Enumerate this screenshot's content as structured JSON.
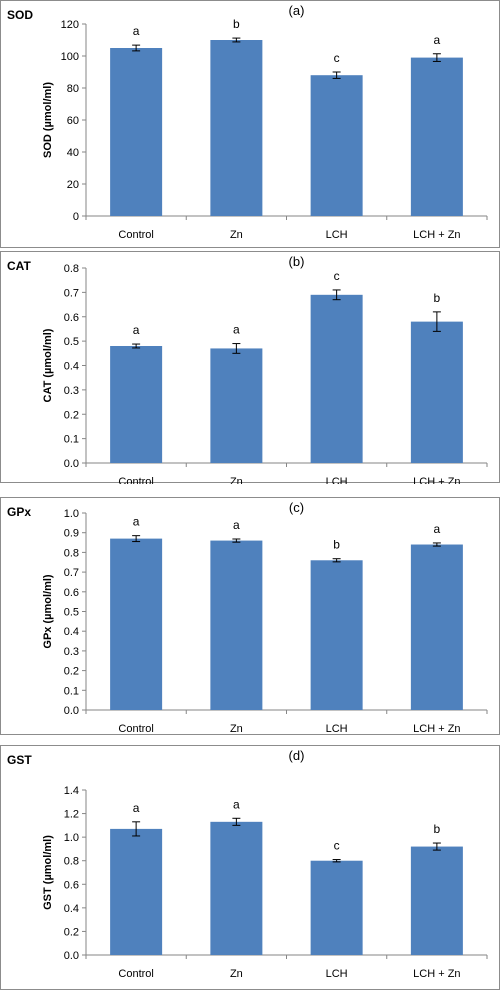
{
  "colors": {
    "bar": "#4f81bd",
    "axis": "#868686",
    "error": "#000000",
    "border": "#8c8c8c"
  },
  "chart_data": [
    {
      "type": "bar",
      "panel_label": "(a)",
      "corner_label": "SOD",
      "ylabel": "SOD (µmol/ml)",
      "categories": [
        "Control",
        "Zn",
        "LCH",
        "LCH + Zn"
      ],
      "values": [
        105,
        110,
        88,
        99
      ],
      "errors": [
        1.8,
        1.2,
        2.0,
        2.4
      ],
      "significance": [
        "a",
        "b",
        "c",
        "a"
      ],
      "ylim": [
        0,
        120
      ],
      "yticks": [
        "0",
        "20",
        "40",
        "60",
        "80",
        "100",
        "120"
      ]
    },
    {
      "type": "bar",
      "panel_label": "(b)",
      "corner_label": "CAT",
      "ylabel": "CAT (µmol/ml)",
      "categories": [
        "Control",
        "Zn",
        "LCH",
        "LCH + Zn"
      ],
      "values": [
        0.48,
        0.47,
        0.69,
        0.58
      ],
      "errors": [
        0.008,
        0.02,
        0.02,
        0.04
      ],
      "significance": [
        "a",
        "a",
        "c",
        "b"
      ],
      "ylim": [
        0,
        0.8
      ],
      "yticks": [
        "0.0",
        "0.1",
        "0.2",
        "0.3",
        "0.4",
        "0.5",
        "0.6",
        "0.7",
        "0.8"
      ]
    },
    {
      "type": "bar",
      "panel_label": "(c)",
      "corner_label": "GPx",
      "ylabel": "GPx (µmol/ml)",
      "categories": [
        "Control",
        "Zn",
        "LCH",
        "LCH + Zn"
      ],
      "values": [
        0.87,
        0.86,
        0.76,
        0.84
      ],
      "errors": [
        0.015,
        0.008,
        0.008,
        0.008
      ],
      "significance": [
        "a",
        "a",
        "b",
        "a"
      ],
      "ylim": [
        0,
        1.0
      ],
      "yticks": [
        "0.0",
        "0.1",
        "0.2",
        "0.3",
        "0.4",
        "0.5",
        "0.6",
        "0.7",
        "0.8",
        "0.9",
        "1.0"
      ]
    },
    {
      "type": "bar",
      "panel_label": "(d)",
      "corner_label": "GST",
      "ylabel": "GST (µmol/ml)",
      "categories": [
        "Control",
        "Zn",
        "LCH",
        "LCH + Zn"
      ],
      "values": [
        1.07,
        1.13,
        0.8,
        0.92
      ],
      "errors": [
        0.06,
        0.03,
        0.01,
        0.03
      ],
      "significance": [
        "a",
        "a",
        "c",
        "b"
      ],
      "ylim": [
        0,
        1.4
      ],
      "yticks": [
        "0.0",
        "0.2",
        "0.4",
        "0.6",
        "0.8",
        "1.0",
        "1.2",
        "1.4"
      ]
    }
  ]
}
